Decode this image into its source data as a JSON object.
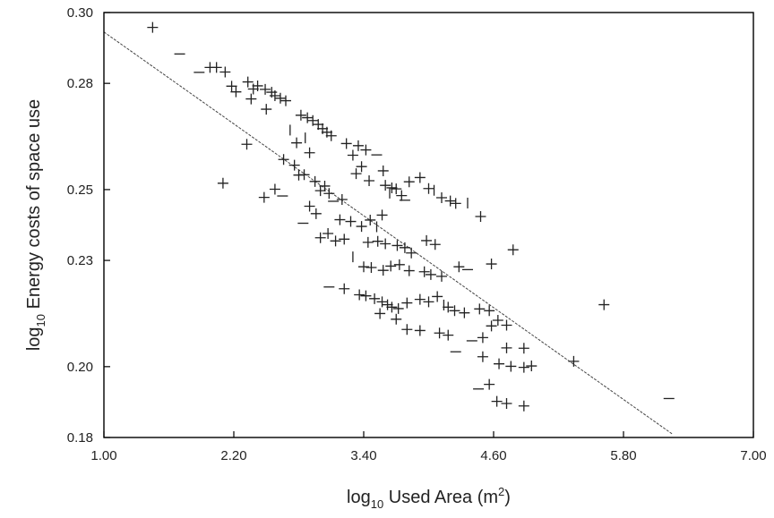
{
  "chart_data": {
    "type": "scatter",
    "title": "",
    "xlabel": {
      "prefix": "log",
      "subscript": "10",
      "text": " Used Area (m",
      "superscript": "2",
      "suffix": ")"
    },
    "ylabel": {
      "prefix": "log",
      "subscript": "10",
      "text": " Energy costs of space use"
    },
    "xlim": [
      1.0,
      7.0
    ],
    "ylim": [
      0.18,
      0.3
    ],
    "xticks": [
      "1.00",
      "2.20",
      "3.40",
      "4.60",
      "5.80",
      "7.00"
    ],
    "xtick_values": [
      1.0,
      2.2,
      3.4,
      4.6,
      5.8,
      7.0
    ],
    "yticks": [
      "0.18",
      "0.20",
      "0.23",
      "0.25",
      "0.28",
      "0.30"
    ],
    "ytick_values": [
      0.18,
      0.2,
      0.23,
      0.25,
      0.28,
      0.3
    ],
    "grid": false,
    "legend": "none",
    "fit_line": {
      "x": [
        1.0,
        6.25
      ],
      "y": [
        0.2945,
        0.181
      ]
    },
    "points": [
      {
        "x": 1.45,
        "y": 0.2958,
        "m": "plus"
      },
      {
        "x": 1.7,
        "y": 0.2883,
        "m": "dash"
      },
      {
        "x": 1.98,
        "y": 0.2845,
        "m": "plus"
      },
      {
        "x": 2.04,
        "y": 0.2845,
        "m": "plus"
      },
      {
        "x": 2.12,
        "y": 0.2832,
        "m": "plus"
      },
      {
        "x": 1.88,
        "y": 0.2831,
        "m": "dash"
      },
      {
        "x": 2.18,
        "y": 0.2792,
        "m": "plus"
      },
      {
        "x": 2.22,
        "y": 0.2776,
        "m": "plus"
      },
      {
        "x": 2.33,
        "y": 0.2804,
        "m": "plus"
      },
      {
        "x": 2.38,
        "y": 0.2784,
        "m": "plus"
      },
      {
        "x": 2.42,
        "y": 0.2793,
        "m": "plus"
      },
      {
        "x": 2.49,
        "y": 0.2783,
        "m": "plus"
      },
      {
        "x": 2.55,
        "y": 0.2775,
        "m": "plus"
      },
      {
        "x": 2.58,
        "y": 0.2765,
        "m": "plus"
      },
      {
        "x": 2.63,
        "y": 0.2758,
        "m": "plus"
      },
      {
        "x": 2.68,
        "y": 0.2751,
        "m": "plus"
      },
      {
        "x": 2.36,
        "y": 0.2756,
        "m": "plus"
      },
      {
        "x": 2.5,
        "y": 0.2727,
        "m": "plus"
      },
      {
        "x": 2.32,
        "y": 0.2628,
        "m": "plus"
      },
      {
        "x": 2.1,
        "y": 0.2518,
        "m": "plus"
      },
      {
        "x": 2.48,
        "y": 0.2478,
        "m": "plus"
      },
      {
        "x": 2.58,
        "y": 0.2501,
        "m": "plus"
      },
      {
        "x": 2.65,
        "y": 0.2482,
        "m": "dash"
      },
      {
        "x": 2.82,
        "y": 0.271,
        "m": "plus"
      },
      {
        "x": 2.88,
        "y": 0.2703,
        "m": "plus"
      },
      {
        "x": 2.93,
        "y": 0.2695,
        "m": "plus"
      },
      {
        "x": 2.98,
        "y": 0.2684,
        "m": "plus"
      },
      {
        "x": 3.02,
        "y": 0.2672,
        "m": "plus"
      },
      {
        "x": 3.06,
        "y": 0.2662,
        "m": "plus"
      },
      {
        "x": 3.1,
        "y": 0.2652,
        "m": "plus"
      },
      {
        "x": 2.86,
        "y": 0.2646,
        "m": "vline"
      },
      {
        "x": 2.72,
        "y": 0.2668,
        "m": "vline"
      },
      {
        "x": 2.78,
        "y": 0.2632,
        "m": "plus"
      },
      {
        "x": 2.9,
        "y": 0.2604,
        "m": "plus"
      },
      {
        "x": 2.66,
        "y": 0.2585,
        "m": "plus"
      },
      {
        "x": 2.76,
        "y": 0.2569,
        "m": "plus"
      },
      {
        "x": 2.85,
        "y": 0.2542,
        "m": "plus"
      },
      {
        "x": 2.8,
        "y": 0.2541,
        "m": "plus"
      },
      {
        "x": 2.95,
        "y": 0.2523,
        "m": "plus"
      },
      {
        "x": 3.04,
        "y": 0.251,
        "m": "plus"
      },
      {
        "x": 3.0,
        "y": 0.2497,
        "m": "plus"
      },
      {
        "x": 3.08,
        "y": 0.2489,
        "m": "plus"
      },
      {
        "x": 3.12,
        "y": 0.2467,
        "m": "dash"
      },
      {
        "x": 3.24,
        "y": 0.263,
        "m": "plus"
      },
      {
        "x": 3.35,
        "y": 0.2624,
        "m": "plus"
      },
      {
        "x": 3.42,
        "y": 0.2612,
        "m": "plus"
      },
      {
        "x": 3.3,
        "y": 0.2597,
        "m": "plus"
      },
      {
        "x": 3.52,
        "y": 0.2598,
        "m": "dash"
      },
      {
        "x": 3.38,
        "y": 0.2565,
        "m": "plus"
      },
      {
        "x": 3.58,
        "y": 0.2553,
        "m": "plus"
      },
      {
        "x": 3.33,
        "y": 0.2545,
        "m": "plus"
      },
      {
        "x": 3.45,
        "y": 0.2525,
        "m": "plus"
      },
      {
        "x": 3.6,
        "y": 0.2512,
        "m": "plus"
      },
      {
        "x": 3.66,
        "y": 0.2505,
        "m": "plus"
      },
      {
        "x": 3.7,
        "y": 0.2502,
        "m": "plus"
      },
      {
        "x": 3.64,
        "y": 0.249,
        "m": "vline"
      },
      {
        "x": 3.75,
        "y": 0.2483,
        "m": "plus"
      },
      {
        "x": 3.82,
        "y": 0.2522,
        "m": "plus"
      },
      {
        "x": 3.92,
        "y": 0.2534,
        "m": "plus"
      },
      {
        "x": 3.2,
        "y": 0.2472,
        "m": "plus"
      },
      {
        "x": 3.78,
        "y": 0.247,
        "m": "dash"
      },
      {
        "x": 4.0,
        "y": 0.2503,
        "m": "plus"
      },
      {
        "x": 4.05,
        "y": 0.2498,
        "m": "vline"
      },
      {
        "x": 4.12,
        "y": 0.2477,
        "m": "plus"
      },
      {
        "x": 4.2,
        "y": 0.2468,
        "m": "plus"
      },
      {
        "x": 4.25,
        "y": 0.2461,
        "m": "plus"
      },
      {
        "x": 4.36,
        "y": 0.2462,
        "m": "vline"
      },
      {
        "x": 4.48,
        "y": 0.2424,
        "m": "plus"
      },
      {
        "x": 2.9,
        "y": 0.2453,
        "m": "plus"
      },
      {
        "x": 2.96,
        "y": 0.2432,
        "m": "plus"
      },
      {
        "x": 2.84,
        "y": 0.2405,
        "m": "dash"
      },
      {
        "x": 3.18,
        "y": 0.2415,
        "m": "plus"
      },
      {
        "x": 3.28,
        "y": 0.241,
        "m": "plus"
      },
      {
        "x": 3.38,
        "y": 0.2396,
        "m": "plus"
      },
      {
        "x": 3.46,
        "y": 0.2414,
        "m": "plus"
      },
      {
        "x": 3.57,
        "y": 0.2428,
        "m": "plus"
      },
      {
        "x": 3.52,
        "y": 0.2395,
        "m": "vline"
      },
      {
        "x": 3.07,
        "y": 0.2376,
        "m": "plus"
      },
      {
        "x": 3.0,
        "y": 0.2364,
        "m": "plus"
      },
      {
        "x": 3.14,
        "y": 0.2355,
        "m": "plus"
      },
      {
        "x": 3.22,
        "y": 0.236,
        "m": "plus"
      },
      {
        "x": 3.44,
        "y": 0.2351,
        "m": "plus"
      },
      {
        "x": 3.53,
        "y": 0.2354,
        "m": "plus"
      },
      {
        "x": 3.6,
        "y": 0.2347,
        "m": "plus"
      },
      {
        "x": 3.71,
        "y": 0.2342,
        "m": "plus"
      },
      {
        "x": 3.78,
        "y": 0.2336,
        "m": "plus"
      },
      {
        "x": 3.84,
        "y": 0.2321,
        "m": "plus"
      },
      {
        "x": 3.98,
        "y": 0.2356,
        "m": "plus"
      },
      {
        "x": 4.06,
        "y": 0.2345,
        "m": "plus"
      },
      {
        "x": 3.3,
        "y": 0.231,
        "m": "vline"
      },
      {
        "x": 3.4,
        "y": 0.2282,
        "m": "plus"
      },
      {
        "x": 3.47,
        "y": 0.228,
        "m": "plus"
      },
      {
        "x": 3.58,
        "y": 0.2272,
        "m": "plus"
      },
      {
        "x": 3.65,
        "y": 0.2284,
        "m": "plus"
      },
      {
        "x": 3.73,
        "y": 0.2288,
        "m": "plus"
      },
      {
        "x": 3.82,
        "y": 0.2271,
        "m": "plus"
      },
      {
        "x": 3.96,
        "y": 0.2268,
        "m": "plus"
      },
      {
        "x": 4.02,
        "y": 0.226,
        "m": "plus"
      },
      {
        "x": 4.12,
        "y": 0.2255,
        "m": "plus"
      },
      {
        "x": 4.28,
        "y": 0.2282,
        "m": "plus"
      },
      {
        "x": 4.36,
        "y": 0.2274,
        "m": "dash"
      },
      {
        "x": 3.08,
        "y": 0.2225,
        "m": "dash"
      },
      {
        "x": 3.22,
        "y": 0.222,
        "m": "plus"
      },
      {
        "x": 3.36,
        "y": 0.2203,
        "m": "plus"
      },
      {
        "x": 3.42,
        "y": 0.22,
        "m": "plus"
      },
      {
        "x": 3.5,
        "y": 0.2192,
        "m": "plus"
      },
      {
        "x": 3.57,
        "y": 0.2183,
        "m": "plus"
      },
      {
        "x": 3.62,
        "y": 0.2175,
        "m": "plus"
      },
      {
        "x": 3.66,
        "y": 0.2168,
        "m": "plus"
      },
      {
        "x": 3.72,
        "y": 0.2164,
        "m": "plus"
      },
      {
        "x": 3.8,
        "y": 0.218,
        "m": "plus"
      },
      {
        "x": 3.92,
        "y": 0.219,
        "m": "plus"
      },
      {
        "x": 4.0,
        "y": 0.2183,
        "m": "plus"
      },
      {
        "x": 4.08,
        "y": 0.2198,
        "m": "plus"
      },
      {
        "x": 4.14,
        "y": 0.2174,
        "m": "vline"
      },
      {
        "x": 4.18,
        "y": 0.2168,
        "m": "plus"
      },
      {
        "x": 4.24,
        "y": 0.2158,
        "m": "plus"
      },
      {
        "x": 4.33,
        "y": 0.2152,
        "m": "plus"
      },
      {
        "x": 4.47,
        "y": 0.2163,
        "m": "plus"
      },
      {
        "x": 4.56,
        "y": 0.2158,
        "m": "plus"
      },
      {
        "x": 4.64,
        "y": 0.2131,
        "m": "plus"
      },
      {
        "x": 3.55,
        "y": 0.215,
        "m": "plus"
      },
      {
        "x": 3.7,
        "y": 0.2134,
        "m": "plus"
      },
      {
        "x": 3.8,
        "y": 0.2105,
        "m": "plus"
      },
      {
        "x": 3.92,
        "y": 0.2102,
        "m": "plus"
      },
      {
        "x": 4.1,
        "y": 0.2095,
        "m": "plus"
      },
      {
        "x": 4.18,
        "y": 0.2089,
        "m": "plus"
      },
      {
        "x": 4.5,
        "y": 0.2082,
        "m": "plus"
      },
      {
        "x": 4.58,
        "y": 0.2115,
        "m": "plus"
      },
      {
        "x": 4.72,
        "y": 0.2117,
        "m": "plus"
      },
      {
        "x": 4.4,
        "y": 0.2073,
        "m": "dash"
      },
      {
        "x": 4.72,
        "y": 0.2053,
        "m": "plus"
      },
      {
        "x": 4.88,
        "y": 0.2052,
        "m": "plus"
      },
      {
        "x": 4.25,
        "y": 0.2042,
        "m": "dash"
      },
      {
        "x": 4.5,
        "y": 0.2028,
        "m": "plus"
      },
      {
        "x": 4.65,
        "y": 0.2008,
        "m": "plus"
      },
      {
        "x": 4.76,
        "y": 0.2001,
        "m": "plus"
      },
      {
        "x": 4.88,
        "y": 0.1998,
        "m": "plus"
      },
      {
        "x": 4.95,
        "y": 0.2002,
        "m": "plus"
      },
      {
        "x": 4.56,
        "y": 0.195,
        "m": "plus"
      },
      {
        "x": 4.46,
        "y": 0.1937,
        "m": "dash"
      },
      {
        "x": 4.63,
        "y": 0.1902,
        "m": "plus"
      },
      {
        "x": 4.72,
        "y": 0.1896,
        "m": "plus"
      },
      {
        "x": 4.88,
        "y": 0.1889,
        "m": "plus"
      },
      {
        "x": 4.58,
        "y": 0.229,
        "m": "plus"
      },
      {
        "x": 4.78,
        "y": 0.233,
        "m": "plus"
      },
      {
        "x": 5.62,
        "y": 0.2175,
        "m": "plus"
      },
      {
        "x": 5.34,
        "y": 0.2015,
        "m": "plus"
      },
      {
        "x": 6.22,
        "y": 0.191,
        "m": "dash"
      }
    ]
  }
}
